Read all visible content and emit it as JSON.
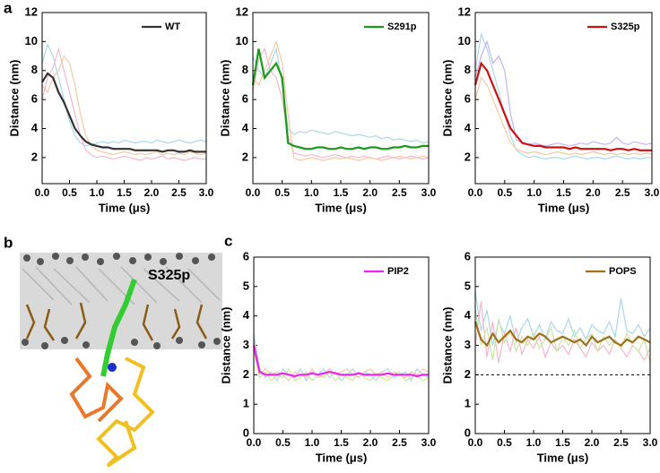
{
  "panel_labels": {
    "a": "a",
    "b": "b",
    "c": "c"
  },
  "structure_label": "S325p",
  "chart_data": [
    {
      "type": "line",
      "xlabel": "Time (μs)",
      "ylabel": "Distance (nm)",
      "legend": "upper right",
      "x": [
        0,
        0.1,
        0.2,
        0.3,
        0.4,
        0.5,
        0.6,
        0.7,
        0.8,
        0.9,
        1,
        1.1,
        1.2,
        1.3,
        1.4,
        1.5,
        1.6,
        1.7,
        1.8,
        1.9,
        2,
        2.1,
        2.2,
        2.3,
        2.4,
        2.5,
        2.6,
        2.7,
        2.8,
        2.9,
        3
      ],
      "xlim": [
        0,
        3
      ],
      "xticks": [
        {
          "value": 0,
          "label": "0.0"
        },
        0.5,
        {
          "value": 1,
          "label": "1.0"
        },
        1.5,
        {
          "value": 2,
          "label": "2.0"
        },
        2.5,
        {
          "value": 3,
          "label": "3.0"
        }
      ],
      "ylim": [
        0.2,
        12
      ],
      "yticks": [
        2,
        4,
        6,
        8,
        10,
        12
      ],
      "series": [
        {
          "color": "#a8d8ea",
          "values": [
            8.5,
            9.8,
            9.0,
            7.5,
            6.0,
            4.5,
            3.5,
            3.0,
            2.8,
            2.9,
            3.0,
            3.1,
            3.0,
            3.1,
            3.0,
            3.2,
            3.1,
            3.0,
            3.1,
            3.1,
            3.0,
            3.2,
            3.1,
            3.0,
            3.1,
            3.2,
            3.1,
            3.0,
            3.1,
            3.2,
            3.1
          ]
        },
        {
          "color": "#f5b5d0",
          "values": [
            6.0,
            7.5,
            8.2,
            9.5,
            8.0,
            6.5,
            5.0,
            3.5,
            2.5,
            2.2,
            2.0,
            2.1,
            2.0,
            1.9,
            2.0,
            2.1,
            2.0,
            1.9,
            1.8,
            2.0,
            1.9,
            2.0,
            2.1,
            1.9,
            2.0,
            1.9,
            1.8,
            1.9,
            2.0,
            1.9,
            1.9
          ]
        },
        {
          "color": "#f7c9a0",
          "values": [
            7.0,
            6.5,
            7.5,
            8.0,
            9.0,
            8.5,
            7.0,
            5.0,
            3.5,
            2.8,
            2.5,
            2.4,
            2.3,
            2.2,
            2.3,
            2.4,
            2.3,
            2.2,
            2.3,
            2.2,
            2.3,
            2.4,
            2.2,
            2.3,
            2.2,
            2.3,
            2.2,
            2.4,
            2.3,
            2.2,
            2.3
          ]
        },
        {
          "name": "WT",
          "color": "#333333",
          "values": [
            7.2,
            7.8,
            7.5,
            6.5,
            5.8,
            4.9,
            4.0,
            3.5,
            3.1,
            2.9,
            2.8,
            2.7,
            2.7,
            2.6,
            2.6,
            2.6,
            2.6,
            2.5,
            2.5,
            2.5,
            2.5,
            2.5,
            2.4,
            2.5,
            2.5,
            2.4,
            2.4,
            2.5,
            2.4,
            2.4,
            2.4
          ]
        }
      ]
    },
    {
      "type": "line",
      "xlabel": "Time (μs)",
      "ylabel": "Distance (nm)",
      "legend": "upper right",
      "x": [
        0,
        0.1,
        0.2,
        0.3,
        0.4,
        0.5,
        0.6,
        0.7,
        0.8,
        0.9,
        1,
        1.1,
        1.2,
        1.3,
        1.4,
        1.5,
        1.6,
        1.7,
        1.8,
        1.9,
        2,
        2.1,
        2.2,
        2.3,
        2.4,
        2.5,
        2.6,
        2.7,
        2.8,
        2.9,
        3
      ],
      "xlim": [
        0,
        3
      ],
      "xticks": [
        {
          "value": 0,
          "label": "0.0"
        },
        0.5,
        {
          "value": 1,
          "label": "1.0"
        },
        1.5,
        {
          "value": 2,
          "label": "2.0"
        },
        2.5,
        {
          "value": 3,
          "label": "3.0"
        }
      ],
      "ylim": [
        0.2,
        12
      ],
      "yticks": [
        2,
        4,
        6,
        8,
        10,
        12
      ],
      "series": [
        {
          "color": "#a8d8ea",
          "values": [
            9.0,
            8.0,
            7.5,
            8.5,
            9.5,
            7.0,
            4.0,
            3.6,
            3.8,
            3.7,
            3.9,
            3.8,
            3.7,
            3.6,
            3.8,
            3.7,
            3.6,
            3.5,
            3.6,
            3.5,
            3.4,
            3.5,
            3.3,
            3.4,
            3.2,
            3.3,
            3.2,
            3.1,
            3.2,
            3.0,
            3.1
          ]
        },
        {
          "color": "#f5b5d0",
          "values": [
            6.5,
            8.8,
            9.5,
            8.0,
            7.5,
            6.0,
            3.5,
            2.3,
            2.2,
            2.1,
            2.2,
            2.1,
            2.0,
            2.1,
            2.2,
            2.1,
            2.0,
            2.1,
            2.0,
            2.1,
            2.0,
            1.9,
            2.0,
            2.1,
            2.0,
            1.9,
            2.0,
            2.1,
            2.0,
            1.9,
            2.0
          ]
        },
        {
          "color": "#f7c9a0",
          "values": [
            7.5,
            7.0,
            8.0,
            9.0,
            10.0,
            8.5,
            5.0,
            2.0,
            1.8,
            1.9,
            2.0,
            1.9,
            1.8,
            1.9,
            2.0,
            1.9,
            2.0,
            1.9,
            1.8,
            1.9,
            2.0,
            1.9,
            1.8,
            1.9,
            2.0,
            2.1,
            2.0,
            1.9,
            2.0,
            2.1,
            2.0
          ]
        },
        {
          "name": "S291p",
          "color": "#1a9a1a",
          "values": [
            7.0,
            9.5,
            7.5,
            8.0,
            8.5,
            7.5,
            3.0,
            2.8,
            2.7,
            2.6,
            2.6,
            2.7,
            2.7,
            2.6,
            2.6,
            2.7,
            2.6,
            2.6,
            2.7,
            2.6,
            2.7,
            2.7,
            2.6,
            2.6,
            2.7,
            2.7,
            2.8,
            2.7,
            2.7,
            2.8,
            2.8
          ]
        }
      ]
    },
    {
      "type": "line",
      "xlabel": "Time (μs)",
      "ylabel": "Distance (nm)",
      "legend": "upper right",
      "x": [
        0,
        0.1,
        0.2,
        0.3,
        0.4,
        0.5,
        0.6,
        0.7,
        0.8,
        0.9,
        1,
        1.1,
        1.2,
        1.3,
        1.4,
        1.5,
        1.6,
        1.7,
        1.8,
        1.9,
        2,
        2.1,
        2.2,
        2.3,
        2.4,
        2.5,
        2.6,
        2.7,
        2.8,
        2.9,
        3
      ],
      "xlim": [
        0,
        3
      ],
      "xticks": [
        {
          "value": 0,
          "label": "0.0"
        },
        0.5,
        {
          "value": 1,
          "label": "1.0"
        },
        1.5,
        {
          "value": 2,
          "label": "2.0"
        },
        2.5,
        {
          "value": 3,
          "label": "3.0"
        }
      ],
      "ylim": [
        0.2,
        12
      ],
      "yticks": [
        2,
        4,
        6,
        8,
        10,
        12
      ],
      "series": [
        {
          "color": "#a8d8ea",
          "values": [
            8.0,
            10.5,
            9.5,
            8.0,
            6.5,
            5.0,
            3.5,
            2.5,
            2.2,
            2.0,
            2.1,
            2.0,
            1.9,
            2.0,
            2.0,
            1.9,
            2.0,
            2.1,
            2.0,
            1.9,
            2.0,
            2.0,
            1.9,
            2.0,
            2.1,
            2.0,
            1.9,
            2.0,
            1.9,
            2.0,
            2.0
          ]
        },
        {
          "color": "#c3b5f0",
          "values": [
            7.5,
            9.0,
            10.0,
            8.5,
            9.0,
            8.0,
            5.0,
            3.2,
            3.0,
            2.9,
            3.0,
            2.9,
            2.8,
            2.9,
            3.0,
            2.9,
            2.8,
            2.9,
            3.0,
            2.9,
            3.1,
            3.0,
            2.9,
            3.0,
            3.4,
            3.0,
            2.9,
            3.1,
            3.0,
            2.9,
            3.0
          ]
        },
        {
          "color": "#f7c9a0",
          "values": [
            6.0,
            7.5,
            7.0,
            6.0,
            5.0,
            4.0,
            3.0,
            2.6,
            2.4,
            2.3,
            2.4,
            2.3,
            2.2,
            2.3,
            2.4,
            2.3,
            2.2,
            2.3,
            2.2,
            2.3,
            2.4,
            2.3,
            2.2,
            2.3,
            2.2,
            2.3,
            2.2,
            2.3,
            2.2,
            2.3,
            2.2
          ]
        },
        {
          "name": "S325p",
          "color": "#cc1111",
          "values": [
            7.0,
            8.5,
            8.0,
            7.0,
            6.0,
            5.0,
            4.0,
            3.5,
            3.0,
            2.9,
            2.8,
            2.8,
            2.7,
            2.7,
            2.7,
            2.7,
            2.6,
            2.7,
            2.6,
            2.6,
            2.6,
            2.6,
            2.6,
            2.5,
            2.6,
            2.6,
            2.5,
            2.6,
            2.5,
            2.5,
            2.5
          ]
        }
      ]
    },
    {
      "type": "line",
      "xlabel": "Time (μs)",
      "ylabel": "Distance (nm)",
      "legend": "upper right",
      "x": [
        0,
        0.1,
        0.2,
        0.3,
        0.4,
        0.5,
        0.6,
        0.7,
        0.8,
        0.9,
        1,
        1.1,
        1.2,
        1.3,
        1.4,
        1.5,
        1.6,
        1.7,
        1.8,
        1.9,
        2,
        2.1,
        2.2,
        2.3,
        2.4,
        2.5,
        2.6,
        2.7,
        2.8,
        2.9,
        3
      ],
      "xlim": [
        0,
        3
      ],
      "xticks": [
        {
          "value": 0,
          "label": "0.0"
        },
        0.5,
        {
          "value": 1,
          "label": "1.0"
        },
        1.5,
        {
          "value": 2,
          "label": "2.0"
        },
        2.5,
        {
          "value": 3,
          "label": "3.0"
        }
      ],
      "ylim": [
        0,
        6
      ],
      "yticks": [
        0,
        1,
        2,
        3,
        4,
        5,
        6
      ],
      "series": [
        {
          "color": "#a8d8ea",
          "values": [
            3.4,
            2.2,
            1.9,
            2.1,
            1.8,
            2.2,
            2.0,
            1.9,
            2.2,
            1.8,
            2.1,
            2.0,
            2.2,
            1.9,
            2.1,
            1.8,
            2.0,
            2.2,
            1.9,
            2.1,
            2.0,
            1.8,
            2.1,
            2.2,
            1.9,
            2.0,
            2.1,
            1.8,
            2.2,
            2.0,
            1.9
          ]
        },
        {
          "color": "#c8e6a0",
          "values": [
            2.8,
            1.9,
            2.1,
            1.8,
            2.0,
            1.9,
            2.2,
            1.8,
            1.9,
            2.1,
            1.8,
            2.0,
            1.9,
            2.1,
            1.8,
            2.0,
            1.9,
            1.8,
            2.1,
            1.9,
            1.8,
            2.0,
            1.9,
            1.8,
            2.0,
            2.1,
            1.8,
            1.9,
            2.0,
            1.8,
            1.9
          ]
        },
        {
          "color": "#f7c9a0",
          "values": [
            3.2,
            2.0,
            2.2,
            2.0,
            2.1,
            2.0,
            1.8,
            2.1,
            2.0,
            1.9,
            2.2,
            1.9,
            2.0,
            2.2,
            2.0,
            2.1,
            2.2,
            2.0,
            1.9,
            2.1,
            2.2,
            2.0,
            2.1,
            1.9,
            2.1,
            2.0,
            1.9,
            2.1,
            2.0,
            2.2,
            2.1
          ]
        },
        {
          "name": "PIP2",
          "color": "#ee22ee",
          "values": [
            3.0,
            2.1,
            2.0,
            2.0,
            2.0,
            2.05,
            2.0,
            1.95,
            2.0,
            2.0,
            2.05,
            2.0,
            2.05,
            2.1,
            2.05,
            2.0,
            2.0,
            2.0,
            2.05,
            2.0,
            2.0,
            2.0,
            2.0,
            2.05,
            2.0,
            2.0,
            2.0,
            2.0,
            1.95,
            2.0,
            2.0
          ]
        }
      ]
    },
    {
      "type": "line",
      "xlabel": "Time (μs)",
      "ylabel": "Distance (nm)",
      "legend": "upper right",
      "reference_line": 2,
      "x": [
        0,
        0.1,
        0.2,
        0.3,
        0.4,
        0.5,
        0.6,
        0.7,
        0.8,
        0.9,
        1,
        1.1,
        1.2,
        1.3,
        1.4,
        1.5,
        1.6,
        1.7,
        1.8,
        1.9,
        2,
        2.1,
        2.2,
        2.3,
        2.4,
        2.5,
        2.6,
        2.7,
        2.8,
        2.9,
        3
      ],
      "xlim": [
        0,
        3
      ],
      "xticks": [
        {
          "value": 0,
          "label": "0.0"
        },
        0.5,
        {
          "value": 1,
          "label": "1.0"
        },
        1.5,
        {
          "value": 2,
          "label": "2.0"
        },
        2.5,
        {
          "value": 3,
          "label": "3.0"
        }
      ],
      "ylim": [
        0,
        6
      ],
      "yticks": [
        0,
        1,
        2,
        3,
        4,
        5,
        6
      ],
      "series": [
        {
          "color": "#a8d8ea",
          "values": [
            4.8,
            3.5,
            4.2,
            3.0,
            3.8,
            3.4,
            4.0,
            3.1,
            3.6,
            3.9,
            3.3,
            3.7,
            3.2,
            3.8,
            3.5,
            3.4,
            3.9,
            3.3,
            3.6,
            3.2,
            3.7,
            3.5,
            3.4,
            3.8,
            3.3,
            4.6,
            3.5,
            3.4,
            3.7,
            3.3,
            3.6
          ]
        },
        {
          "color": "#f5b5d0",
          "values": [
            3.0,
            4.5,
            2.6,
            3.8,
            2.4,
            3.4,
            2.8,
            3.6,
            2.7,
            3.2,
            2.9,
            3.3,
            2.6,
            3.1,
            2.8,
            3.0,
            2.7,
            3.2,
            2.9,
            2.6,
            3.1,
            2.8,
            3.0,
            2.7,
            3.2,
            2.9,
            2.6,
            3.0,
            2.8,
            2.5,
            2.9
          ]
        },
        {
          "color": "#c8e6a0",
          "values": [
            4.2,
            3.0,
            3.6,
            2.5,
            3.9,
            3.1,
            3.5,
            2.8,
            3.3,
            3.0,
            3.4,
            2.9,
            3.2,
            3.6,
            2.8,
            3.3,
            3.0,
            3.5,
            2.9,
            3.2,
            3.4,
            2.8,
            3.3,
            3.0,
            3.2,
            2.9,
            3.4,
            3.0,
            2.8,
            3.2,
            2.4
          ]
        },
        {
          "name": "POPS",
          "color": "#a0701a",
          "values": [
            3.8,
            3.2,
            3.0,
            3.4,
            3.1,
            3.3,
            3.5,
            3.2,
            3.1,
            3.3,
            3.2,
            3.4,
            3.3,
            3.1,
            3.2,
            3.3,
            3.2,
            3.1,
            3.2,
            3.0,
            3.3,
            3.1,
            3.2,
            3.3,
            3.1,
            3.0,
            3.2,
            3.1,
            3.3,
            3.2,
            3.1
          ]
        }
      ]
    }
  ]
}
